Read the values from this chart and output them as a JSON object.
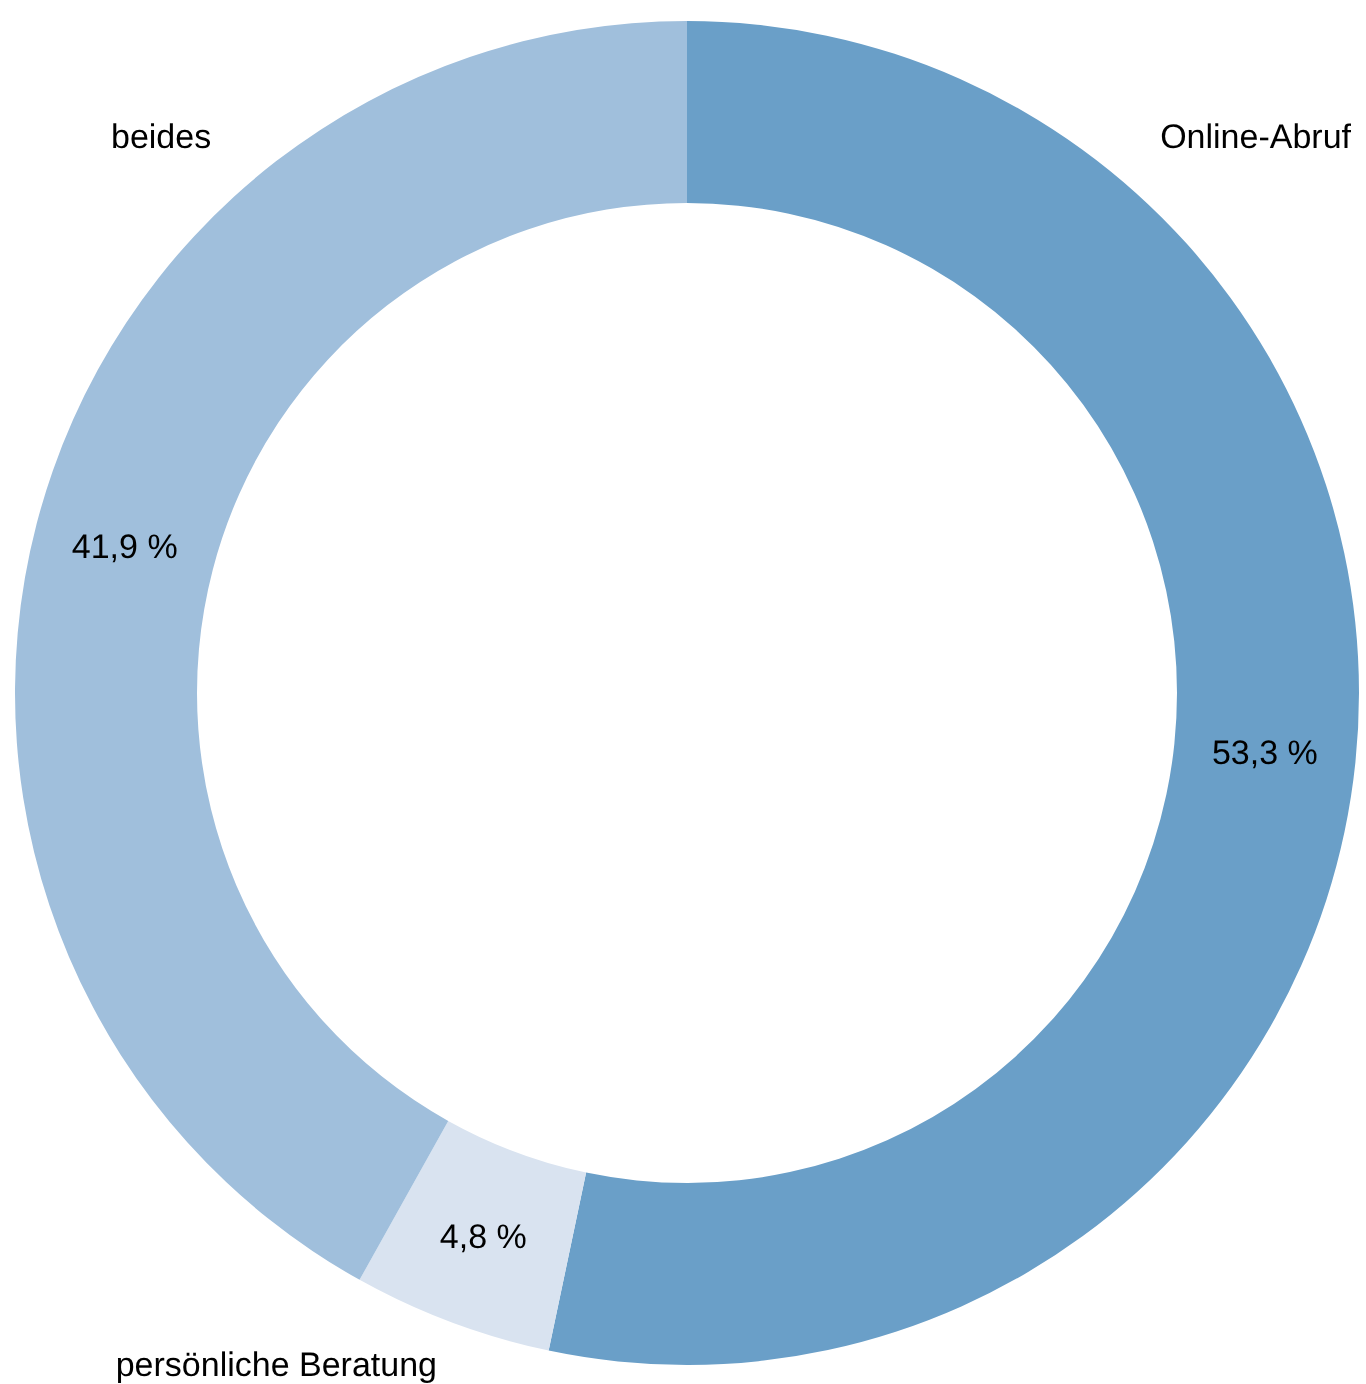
{
  "chart_data": {
    "type": "donut",
    "categories": [
      "Online-Abruf",
      "persönliche Beratung",
      "beides"
    ],
    "values": [
      53.3,
      4.8,
      41.9
    ],
    "colors": [
      "#6a9fc8",
      "#d9e3f0",
      "#a0bfdc"
    ],
    "value_labels": [
      "53,3 %",
      "4,8 %",
      "41,9 %"
    ]
  }
}
